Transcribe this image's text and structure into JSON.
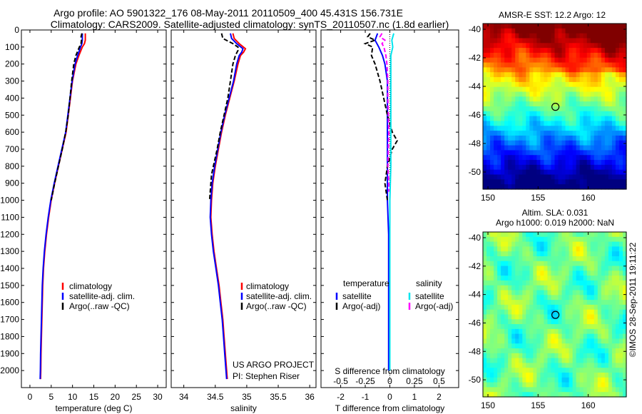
{
  "header": {
    "line1": "Argo profile: AO 5901322_176 08-May-2011 20110509_400 45.431S 156.731E",
    "line2": "Climatology: CARS2009. Satellite-adjusted climatology: synTS_20110507.nc (1.8d earlier)"
  },
  "chart_data": [
    {
      "type": "line",
      "name": "temperature-profile",
      "xlabel": "temperature (deg C)",
      "ylabel": "",
      "xlim": [
        -2,
        32
      ],
      "ylim": [
        2100,
        0
      ],
      "xticks": [
        0,
        5,
        10,
        15,
        20,
        25,
        30
      ],
      "yticks": [
        0,
        100,
        200,
        300,
        400,
        500,
        600,
        700,
        800,
        900,
        1000,
        1100,
        1200,
        1300,
        1400,
        1500,
        1600,
        1700,
        1800,
        1900,
        2000
      ],
      "legend": [
        "climatology",
        "satellite-adj. clim.",
        "Argo(..raw -QC)"
      ],
      "legend_position": "lower-right",
      "series": [
        {
          "name": "climatology",
          "color": "#ff0000",
          "dash": "solid",
          "depth": [
            20,
            40,
            60,
            80,
            100,
            150,
            200,
            300,
            400,
            500,
            600,
            700,
            800,
            900,
            1000,
            1100,
            1200,
            1300,
            1400,
            1500,
            1600,
            1700,
            1800,
            1900,
            2000,
            2050
          ],
          "values": [
            13.0,
            13.0,
            13.0,
            12.8,
            12.3,
            11.5,
            10.8,
            10.0,
            9.5,
            9.0,
            8.5,
            7.6,
            6.7,
            5.8,
            5.0,
            4.4,
            3.9,
            3.5,
            3.2,
            3.0,
            2.9,
            2.8,
            2.7,
            2.6,
            2.55,
            2.5
          ]
        },
        {
          "name": "satellite-adj. clim.",
          "color": "#0000ff",
          "dash": "solid",
          "depth": [
            20,
            40,
            60,
            80,
            100,
            150,
            200,
            300,
            400,
            500,
            600,
            700,
            800,
            900,
            1000,
            1100,
            1200,
            1300,
            1400,
            1500,
            1600,
            1700,
            1800,
            1900,
            2000,
            2050
          ],
          "values": [
            12.3,
            12.3,
            12.3,
            12.2,
            11.9,
            11.2,
            10.6,
            9.9,
            9.4,
            8.9,
            8.4,
            7.5,
            6.6,
            5.7,
            4.9,
            4.3,
            3.8,
            3.4,
            3.1,
            2.9,
            2.8,
            2.7,
            2.6,
            2.5,
            2.45,
            2.4
          ]
        },
        {
          "name": "Argo(..raw -QC)",
          "color": "#000000",
          "dash": "dashed",
          "depth": [
            20,
            40,
            60,
            80,
            100,
            150,
            200,
            300,
            400,
            500,
            600,
            700,
            800,
            900,
            1000
          ],
          "values": [
            12.2,
            12.0,
            12.1,
            12.0,
            11.6,
            10.8,
            10.3,
            9.8,
            9.4,
            9.0,
            8.4,
            7.6,
            6.7,
            5.8,
            5.0
          ]
        }
      ]
    },
    {
      "type": "line",
      "name": "salinity-profile",
      "xlabel": "salinity",
      "ylabel": "",
      "xlim": [
        33.8,
        36.1
      ],
      "ylim": [
        2100,
        0
      ],
      "xticks": [
        34,
        34.5,
        35,
        35.5,
        36
      ],
      "legend": [
        "climatology",
        "satellite-adj. clim.",
        "Argo(..raw -QC)"
      ],
      "legend_position": "lower-right",
      "annotation": [
        "US ARGO PROJECT",
        "PI: Stephen Riser"
      ],
      "series": [
        {
          "name": "climatology",
          "color": "#ff0000",
          "dash": "solid",
          "depth": [
            20,
            50,
            80,
            110,
            130,
            150,
            200,
            300,
            400,
            500,
            600,
            700,
            800,
            900,
            1000,
            1100,
            1200,
            1300,
            1400,
            1500,
            1600,
            1700,
            1800,
            1900,
            2000,
            2050
          ],
          "values": [
            34.78,
            34.8,
            34.88,
            34.98,
            34.95,
            34.9,
            34.86,
            34.8,
            34.73,
            34.66,
            34.6,
            34.55,
            34.5,
            34.46,
            34.44,
            34.43,
            34.45,
            34.48,
            34.52,
            34.56,
            34.59,
            34.62,
            34.64,
            34.66,
            34.68,
            34.69
          ]
        },
        {
          "name": "satellite-adj. clim.",
          "color": "#0000ff",
          "dash": "solid",
          "depth": [
            20,
            50,
            80,
            110,
            130,
            150,
            200,
            300,
            400,
            500,
            600,
            700,
            800,
            900,
            1000,
            1100,
            1200,
            1300,
            1400,
            1500,
            1600,
            1700,
            1800,
            1900,
            2000,
            2050
          ],
          "values": [
            34.74,
            34.76,
            34.84,
            34.94,
            34.92,
            34.88,
            34.84,
            34.79,
            34.72,
            34.65,
            34.59,
            34.54,
            34.49,
            34.45,
            34.43,
            34.42,
            34.44,
            34.47,
            34.51,
            34.55,
            34.58,
            34.61,
            34.63,
            34.65,
            34.67,
            34.68
          ]
        },
        {
          "name": "Argo(..raw -QC)",
          "color": "#000000",
          "dash": "dashed",
          "depth": [
            20,
            50,
            80,
            100,
            120,
            150,
            200,
            300,
            400,
            500,
            600,
            700,
            800,
            850,
            900,
            950,
            1000
          ],
          "values": [
            34.6,
            34.62,
            34.78,
            34.86,
            34.86,
            34.82,
            34.78,
            34.74,
            34.7,
            34.64,
            34.58,
            34.53,
            34.47,
            34.44,
            34.43,
            34.42,
            34.41
          ]
        }
      ]
    },
    {
      "type": "line",
      "name": "difference-profile",
      "xlabel": "T difference from climatology",
      "top_axis_label": "S difference from climatology",
      "xlim": [
        -2.8,
        2.8
      ],
      "ylim": [
        2100,
        0
      ],
      "xticks": [
        -2,
        -1,
        0,
        1,
        2
      ],
      "top_ticks": [
        -0.5,
        -0.25,
        0,
        0.25,
        0.5
      ],
      "top_tick_labels": [
        "-0.5",
        "-0.25",
        "0",
        "0.25",
        "0.5"
      ],
      "legend_headers": [
        "temperature",
        "salinity"
      ],
      "legend": [
        "satellite",
        "Argo(-adj)",
        "satellite",
        "Argo(-adj)"
      ],
      "legend_position": "lower-center",
      "series": [
        {
          "name": "satellite",
          "color": "#0000ff",
          "dash": "solid",
          "depth": [
            20,
            60,
            100,
            150,
            200,
            300,
            400,
            600,
            800,
            1000,
            1200,
            1500,
            1800,
            2000
          ],
          "values": [
            -0.5,
            -0.6,
            -0.45,
            -0.3,
            -0.2,
            -0.1,
            -0.1,
            -0.1,
            -0.1,
            -0.1,
            -0.05,
            -0.05,
            -0.05,
            -0.05
          ]
        },
        {
          "name": "Argo(-adj)",
          "color": "#000000",
          "dash": "dashed",
          "depth": [
            20,
            40,
            60,
            80,
            100,
            150,
            200,
            300,
            400,
            500,
            600,
            650,
            700,
            800,
            900,
            1000
          ],
          "values": [
            -0.8,
            -0.9,
            -0.6,
            -1.0,
            -0.7,
            -0.75,
            -0.6,
            -0.4,
            -0.25,
            -0.1,
            0.1,
            0.3,
            0.1,
            -0.1,
            -0.2,
            -0.1
          ]
        },
        {
          "name": "satellite",
          "color": "#00e5ee",
          "dash": "solid",
          "depth": [
            20,
            60,
            100,
            150,
            200,
            300,
            400,
            600,
            800,
            1000,
            1200,
            1500,
            1800,
            2000
          ],
          "values": [
            0.04,
            0.02,
            0.03,
            0.01,
            0.01,
            0.01,
            0.01,
            0.01,
            0.01,
            0.0,
            0.0,
            0.0,
            0.0,
            0.0
          ]
        },
        {
          "name": "Argo(-adj)",
          "color": "#ff00ff",
          "dash": "dashed",
          "depth": [
            20,
            40,
            60,
            80,
            100,
            150,
            200,
            300,
            400,
            600,
            800,
            900,
            950
          ],
          "values": [
            -0.08,
            -0.1,
            -0.05,
            -0.08,
            -0.06,
            -0.04,
            -0.03,
            -0.02,
            -0.02,
            -0.01,
            -0.02,
            -0.01,
            -0.01
          ]
        }
      ]
    },
    {
      "type": "heatmap",
      "name": "sst-map",
      "title": "AMSR-E SST: 12.2  Argo: 12",
      "xticks": [
        150,
        155,
        160
      ],
      "yticks": [
        -40,
        -42,
        -44,
        -46,
        -48,
        -50
      ],
      "xlim": [
        149.5,
        163.8
      ],
      "ylim": [
        -51.2,
        -39.6
      ],
      "marker": {
        "lon": 156.731,
        "lat": -45.431
      },
      "colormap": "jet"
    },
    {
      "type": "heatmap",
      "name": "sla-map",
      "title": "Altim. SLA: 0.031",
      "subtitle": "Argo h1000: 0.019 h2000: NaN",
      "xticks": [
        150,
        155,
        160
      ],
      "yticks": [
        -40,
        -42,
        -44,
        -46,
        -48,
        -50
      ],
      "xlim": [
        149.5,
        163.8
      ],
      "ylim": [
        -51.2,
        -39.6
      ],
      "marker": {
        "lon": 156.731,
        "lat": -45.431
      },
      "colormap": "jet"
    }
  ],
  "footer": {
    "credit": "©IMOS 28-Sep-2011 19:11:22"
  }
}
